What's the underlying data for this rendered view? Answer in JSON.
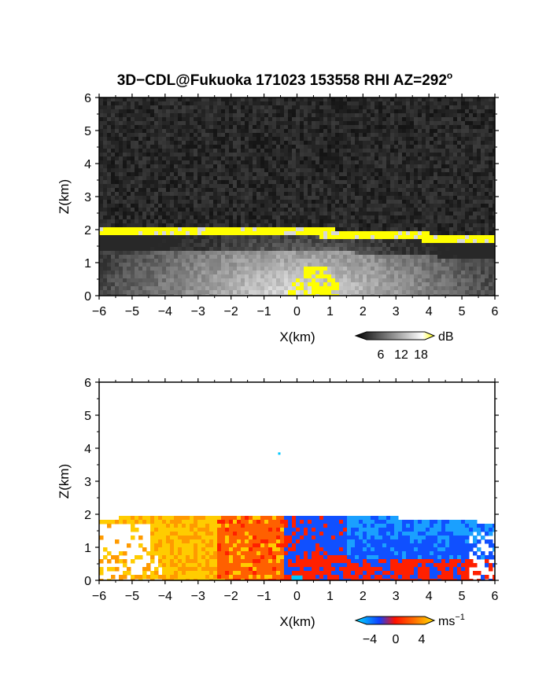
{
  "figure": {
    "title": "3D−CDL@Fukuoka 171023 153558 RHI AZ=292",
    "title_superscript": "o"
  },
  "chart_data": [
    {
      "type": "heatmap",
      "panel": "reflectivity",
      "xlabel": "X(km)",
      "ylabel": "Z(km)",
      "xlim": [
        -6,
        6
      ],
      "ylim": [
        0,
        6
      ],
      "xticks": [
        "−6",
        "−5",
        "−4",
        "−3",
        "−2",
        "−1",
        "0",
        "1",
        "2",
        "3",
        "4",
        "5",
        "6"
      ],
      "yticks": [
        "0",
        "1",
        "2",
        "3",
        "4",
        "5",
        "6"
      ],
      "colorbar": {
        "unit": "dB",
        "tick_labels": [
          "6",
          "12",
          "18"
        ],
        "range": [
          0,
          20
        ]
      },
      "colors": {
        "background": "#222222",
        "saturated": "#ffff00"
      },
      "layer_top_km": [
        {
          "x": -6,
          "z": 2.0
        },
        {
          "x": -4,
          "z": 2.0
        },
        {
          "x": -2,
          "z": 2.0
        },
        {
          "x": 0,
          "z": 2.0
        },
        {
          "x": 2,
          "z": 1.95
        },
        {
          "x": 4,
          "z": 1.85
        },
        {
          "x": 6,
          "z": 1.75
        }
      ]
    },
    {
      "type": "heatmap",
      "panel": "doppler-velocity",
      "xlabel": "X(km)",
      "ylabel": "Z(km)",
      "xlim": [
        -6,
        6
      ],
      "ylim": [
        0,
        6
      ],
      "xticks": [
        "−6",
        "−5",
        "−4",
        "−3",
        "−2",
        "−1",
        "0",
        "1",
        "2",
        "3",
        "4",
        "5",
        "6"
      ],
      "yticks": [
        "0",
        "1",
        "2",
        "3",
        "4",
        "5",
        "6"
      ],
      "colorbar": {
        "unit": "ms",
        "unit_superscript": "−1",
        "tick_labels": [
          "−4",
          "0",
          "4"
        ],
        "range": [
          -5,
          5
        ]
      },
      "colors": {
        "negative": "#1050ff",
        "near_zero": "#ff2000",
        "positive": "#ffcc00",
        "strong_negative": "#00c8ff"
      }
    }
  ]
}
